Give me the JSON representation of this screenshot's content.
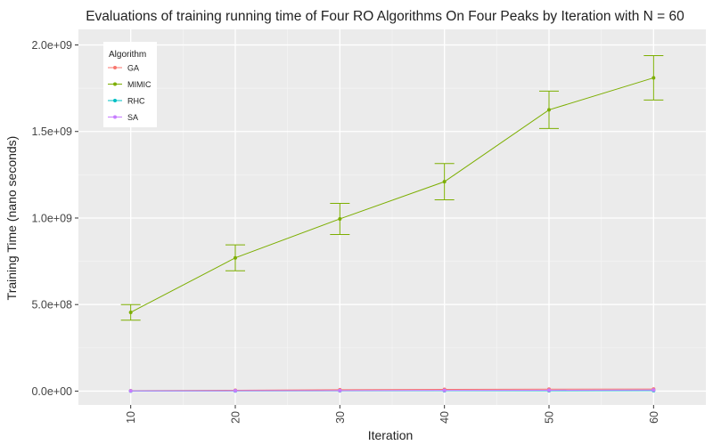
{
  "chart_data": {
    "type": "line",
    "title": "Evaluations of training running time of Four RO Algorithms On Four Peaks by Iteration with N = 60",
    "xlabel": "Iteration",
    "ylabel": "Training Time (nano seconds)",
    "x": [
      10,
      20,
      30,
      40,
      50,
      60
    ],
    "x_ticks": [
      "10",
      "20",
      "30",
      "40",
      "50",
      "60"
    ],
    "y_ticks": [
      {
        "value": 0,
        "label": "0.0e+00"
      },
      {
        "value": 500000000,
        "label": "5.0e+08"
      },
      {
        "value": 1000000000,
        "label": "1.0e+09"
      },
      {
        "value": 1500000000,
        "label": "1.5e+09"
      },
      {
        "value": 2000000000,
        "label": "2.0e+09"
      }
    ],
    "xlim": [
      5,
      65
    ],
    "ylim": [
      -80000000,
      2090000000
    ],
    "grid": true,
    "legend": {
      "title": "Algorithm",
      "position": "top-left"
    },
    "series": [
      {
        "name": "GA",
        "color": "#F8766D",
        "values": [
          2000000,
          5000000,
          8000000,
          10000000,
          11000000,
          12000000
        ],
        "err": [
          0,
          0,
          0,
          0,
          0,
          0
        ]
      },
      {
        "name": "MIMIC",
        "color": "#7CAE00",
        "values": [
          455000000,
          770000000,
          995000000,
          1210000000,
          1625000000,
          1810000000
        ],
        "err": [
          45000000,
          75000000,
          90000000,
          105000000,
          108000000,
          128000000
        ]
      },
      {
        "name": "RHC",
        "color": "#00BFC4",
        "values": [
          500000,
          1000000,
          1500000,
          2000000,
          2500000,
          3000000
        ],
        "err": [
          0,
          0,
          0,
          0,
          0,
          0
        ]
      },
      {
        "name": "SA",
        "color": "#C77CFF",
        "values": [
          1000000,
          2000000,
          3000000,
          4000000,
          5000000,
          6000000
        ],
        "err": [
          0,
          0,
          0,
          0,
          0,
          0
        ]
      }
    ]
  }
}
